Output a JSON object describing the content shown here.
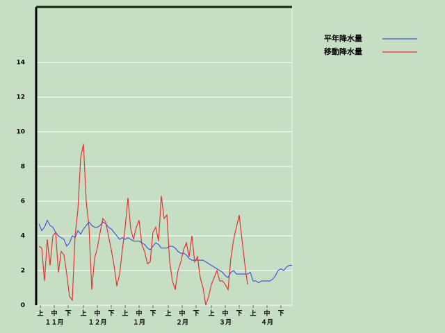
{
  "chart_data": {
    "type": "line",
    "x": [
      2,
      4,
      6,
      8,
      10,
      12,
      14,
      16,
      18,
      20,
      22,
      24,
      26,
      28,
      30,
      32,
      34,
      36,
      38,
      40,
      42,
      44,
      46,
      48,
      50,
      52,
      54,
      56,
      58,
      60,
      62,
      64,
      66,
      68,
      70,
      72,
      74,
      76,
      78,
      80,
      82,
      84,
      86,
      88,
      90,
      92,
      94,
      96,
      98,
      100,
      102,
      104,
      106,
      108,
      110,
      112,
      114,
      116,
      118,
      120,
      122,
      124,
      126,
      128,
      130,
      132,
      134,
      136,
      138,
      140,
      142,
      144,
      146,
      148,
      150,
      152,
      154,
      156,
      158,
      160,
      162,
      164,
      166,
      168,
      170,
      172,
      174,
      176,
      178,
      180,
      182,
      184
    ],
    "series": [
      {
        "name": "平年降水量",
        "color": "#4455dd",
        "values": [
          4.7,
          4.3,
          4.5,
          4.9,
          4.6,
          4.5,
          4.2,
          4.0,
          3.9,
          3.8,
          3.4,
          3.6,
          4.0,
          3.9,
          4.3,
          4.1,
          4.4,
          4.6,
          4.8,
          4.6,
          4.5,
          4.5,
          4.6,
          4.8,
          4.7,
          4.5,
          4.4,
          4.2,
          4.0,
          3.8,
          3.9,
          3.8,
          3.9,
          3.8,
          3.7,
          3.7,
          3.7,
          3.6,
          3.5,
          3.3,
          3.2,
          3.4,
          3.6,
          3.5,
          3.3,
          3.3,
          3.3,
          3.4,
          3.4,
          3.3,
          3.1,
          3.0,
          3.0,
          2.9,
          2.7,
          2.6,
          2.6,
          2.6,
          2.6,
          2.6,
          2.5,
          2.4,
          2.3,
          2.2,
          2.1,
          2.0,
          1.9,
          1.7,
          1.6,
          1.9,
          2.0,
          1.8,
          1.8,
          1.8,
          1.8,
          1.8,
          1.9,
          1.4,
          1.4,
          1.3,
          1.4,
          1.4,
          1.4,
          1.4,
          1.5,
          1.7,
          2.0,
          2.1,
          2.0,
          2.2,
          2.3,
          2.3
        ]
      },
      {
        "name": "移動降水量",
        "color": "#e03333",
        "values": [
          3.4,
          3.3,
          1.4,
          3.8,
          2.3,
          4.0,
          4.2,
          1.9,
          3.1,
          2.9,
          1.8,
          0.5,
          0.3,
          4.0,
          5.5,
          8.5,
          9.3,
          6.0,
          4.5,
          0.9,
          2.7,
          3.3,
          4.2,
          5.0,
          4.8,
          4.0,
          3.2,
          2.3,
          1.1,
          1.8,
          3.2,
          4.5,
          6.2,
          4.4,
          3.8,
          4.5,
          4.9,
          3.5,
          3.1,
          2.4,
          2.5,
          4.2,
          4.5,
          3.7,
          6.3,
          5.0,
          5.2,
          2.5,
          1.4,
          0.9,
          2.0,
          2.5,
          3.2,
          3.6,
          2.8,
          4.0,
          2.5,
          2.8,
          1.6,
          1.0,
          0.0,
          0.5,
          1.2,
          1.6,
          2.0,
          1.4,
          1.4,
          1.2,
          0.9,
          2.7,
          3.8,
          4.5,
          5.2,
          3.8,
          2.4,
          1.2,
          null,
          null,
          null,
          null,
          null,
          null,
          null,
          null,
          null,
          null,
          null,
          null,
          null,
          null,
          null,
          null
        ]
      }
    ],
    "xlim": [
      0,
      184
    ],
    "xticks": [
      {
        "value": 3,
        "label": "上"
      },
      {
        "value": 13,
        "label": "中"
      },
      {
        "value": 23,
        "label": "下"
      },
      {
        "value": 34,
        "label": "上"
      },
      {
        "value": 44,
        "label": "中"
      },
      {
        "value": 54,
        "label": "下"
      },
      {
        "value": 64,
        "label": "上"
      },
      {
        "value": 74,
        "label": "中"
      },
      {
        "value": 84,
        "label": "下"
      },
      {
        "value": 95,
        "label": "上"
      },
      {
        "value": 105,
        "label": "中"
      },
      {
        "value": 115,
        "label": "下"
      },
      {
        "value": 126,
        "label": "上"
      },
      {
        "value": 136,
        "label": "中"
      },
      {
        "value": 146,
        "label": "下"
      },
      {
        "value": 156,
        "label": "上"
      },
      {
        "value": 166,
        "label": "中"
      },
      {
        "value": 176,
        "label": "下"
      }
    ],
    "month_labels": [
      {
        "value": 13,
        "label": "１１月"
      },
      {
        "value": 44,
        "label": "１２月"
      },
      {
        "value": 74,
        "label": "１月"
      },
      {
        "value": 105,
        "label": "２月"
      },
      {
        "value": 136,
        "label": "３月"
      },
      {
        "value": 166,
        "label": "４月"
      }
    ],
    "ylim": [
      0,
      17.2
    ],
    "yticks": [
      0,
      2,
      4,
      6,
      8,
      10,
      12,
      14
    ],
    "grid": true
  }
}
